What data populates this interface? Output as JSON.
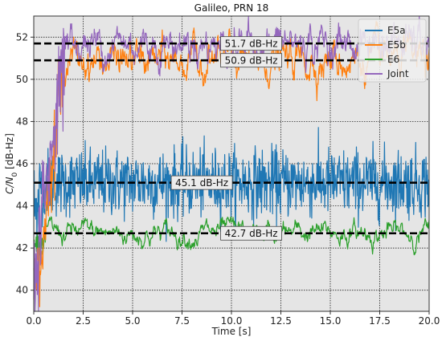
{
  "chart_data": {
    "type": "line",
    "title": "Galileo, PRN 18",
    "xlabel": "Time [s]",
    "ylabel_main": "C/N",
    "ylabel_sub": "0",
    "ylabel_unit": " [dB-Hz]",
    "xlim": [
      0,
      20
    ],
    "ylim": [
      39,
      53
    ],
    "grid": true,
    "legend_position": "top-right",
    "x_ticks": [
      0,
      2.5,
      5,
      7.5,
      10,
      12.5,
      15,
      17.5,
      20
    ],
    "x_tick_labels": [
      "0.0",
      "2.5",
      "5.0",
      "7.5",
      "10.0",
      "12.5",
      "15.0",
      "17.5",
      "20.0"
    ],
    "y_ticks": [
      40,
      42,
      44,
      46,
      48,
      50,
      52
    ],
    "y_tick_labels": [
      "40",
      "42",
      "44",
      "46",
      "48",
      "50",
      "52"
    ],
    "series": [
      {
        "name": "E5a",
        "color": "#1f77b4",
        "mean": 45.1,
        "spread": 0.8
      },
      {
        "name": "E5b",
        "color": "#ff7f0e",
        "mean": 50.9,
        "spread": 0.45
      },
      {
        "name": "E6",
        "color": "#2ca02c",
        "mean": 42.7,
        "spread": 0.28
      },
      {
        "name": "Joint",
        "color": "#9467bd",
        "mean": 51.7,
        "spread": 0.45
      }
    ],
    "reference_lines": [
      {
        "value": 51.7,
        "label": "51.7 dB-Hz",
        "label_x": 11.0
      },
      {
        "value": 50.9,
        "label": "50.9 dB-Hz",
        "label_x": 11.0
      },
      {
        "value": 45.1,
        "label": "45.1 dB-Hz",
        "label_x": 8.5
      },
      {
        "value": 42.7,
        "label": "42.7 dB-Hz",
        "label_x": 11.0
      }
    ]
  }
}
